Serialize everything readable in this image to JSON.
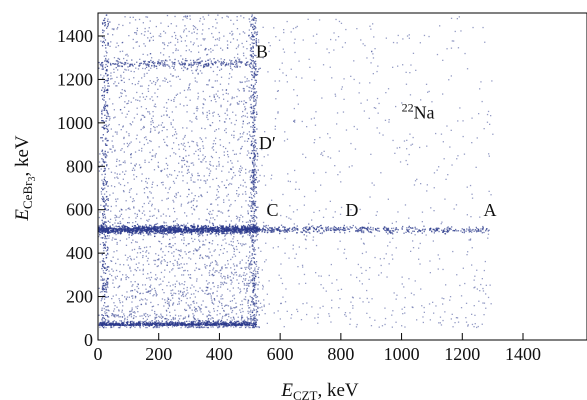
{
  "chart_data": {
    "type": "scatter",
    "title": "",
    "xlabel": {
      "symbol": "E",
      "subscript": "CZT",
      "unit": ", keV"
    },
    "ylabel": {
      "symbol": "E",
      "subscript": "CeBr",
      "subsub": "3",
      "unit": ", keV"
    },
    "xlim": [
      0,
      1500
    ],
    "ylim": [
      0,
      1500
    ],
    "xticks": [
      0,
      200,
      400,
      600,
      800,
      1000,
      1200,
      1400
    ],
    "yticks": [
      0,
      200,
      400,
      600,
      800,
      1000,
      1200,
      1400
    ],
    "grid": false,
    "marker_color": "#2b3a8c",
    "annotations": [
      {
        "text": "A",
        "x": 1270,
        "y": 570
      },
      {
        "text": "B",
        "x": 520,
        "y": 1300
      },
      {
        "text": "C",
        "x": 555,
        "y": 570
      },
      {
        "text": "D",
        "x": 815,
        "y": 570
      },
      {
        "text": "D′",
        "x": 530,
        "y": 880
      },
      {
        "text": "Na",
        "x": 1000,
        "y": 1020,
        "superscript": "22"
      }
    ],
    "features": [
      {
        "name": "horizontal band",
        "y": 511,
        "x_range": [
          0,
          1290
        ],
        "density": "high"
      },
      {
        "name": "horizontal band",
        "y": 1275,
        "x_range": [
          0,
          520
        ],
        "density": "medium"
      },
      {
        "name": "vertical band",
        "x": 511,
        "y_range": [
          60,
          1500
        ],
        "density": "medium"
      },
      {
        "name": "lower threshold band",
        "y": 70,
        "x_range": [
          0,
          520
        ],
        "density": "high"
      },
      {
        "name": "vertical band",
        "x": 20,
        "y_range": [
          60,
          1500
        ],
        "density": "high"
      }
    ]
  }
}
